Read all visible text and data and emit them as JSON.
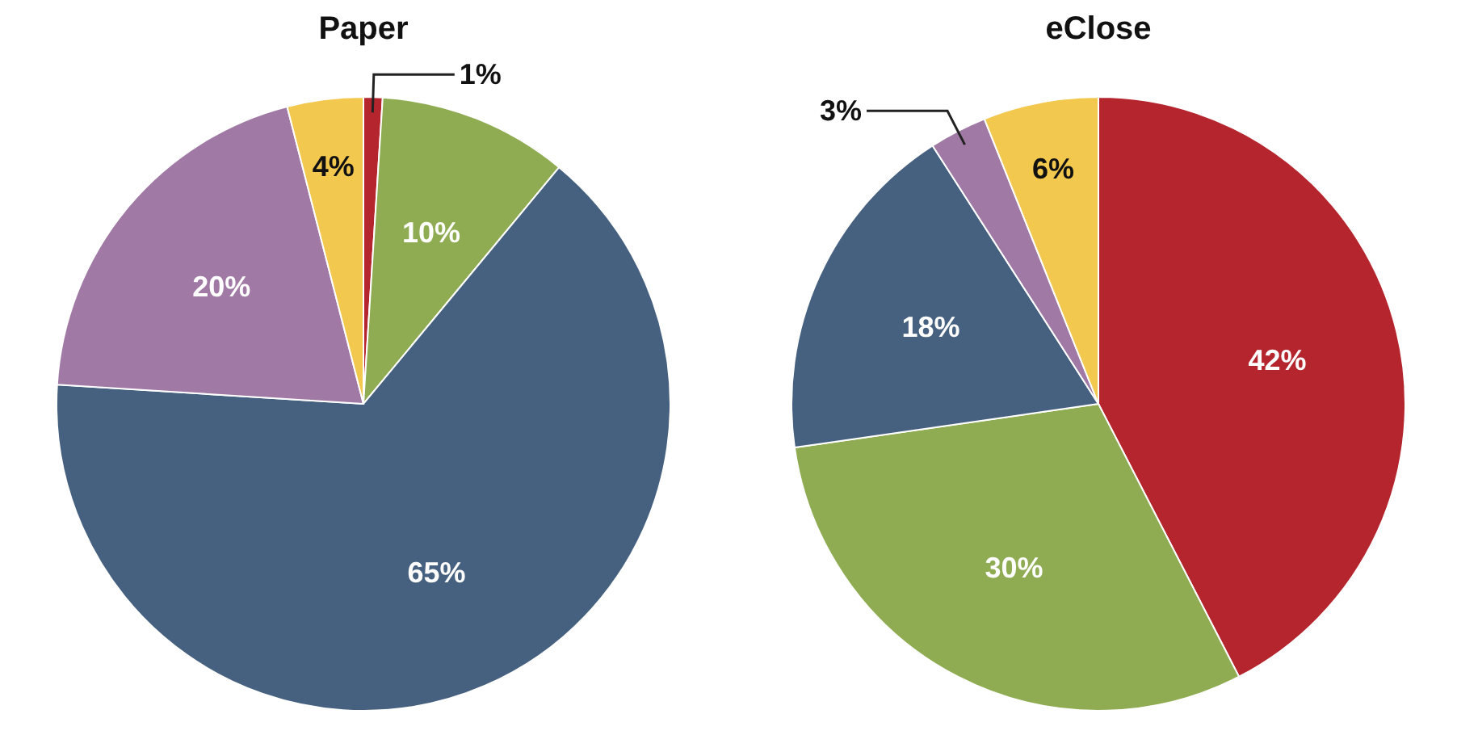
{
  "chart_data": [
    {
      "type": "pie",
      "title": "Paper",
      "categories": [
        null,
        null,
        null,
        null,
        null
      ],
      "values": [
        1,
        10,
        65,
        20,
        4
      ],
      "colors": [
        "#b5252e",
        "#8fac52",
        "#46617f",
        "#a07aa5",
        "#f3c84e"
      ],
      "value_labels": [
        "1%",
        "10%",
        "65%",
        "20%",
        "4%"
      ]
    },
    {
      "type": "pie",
      "title": "eClose",
      "categories": [
        null,
        null,
        null,
        null,
        null
      ],
      "values": [
        42,
        30,
        18,
        3,
        6
      ],
      "colors": [
        "#b5252e",
        "#8fac52",
        "#46617f",
        "#a07aa5",
        "#f3c84e"
      ],
      "value_labels": [
        "42%",
        "30%",
        "18%",
        "3%",
        "6%"
      ]
    }
  ]
}
